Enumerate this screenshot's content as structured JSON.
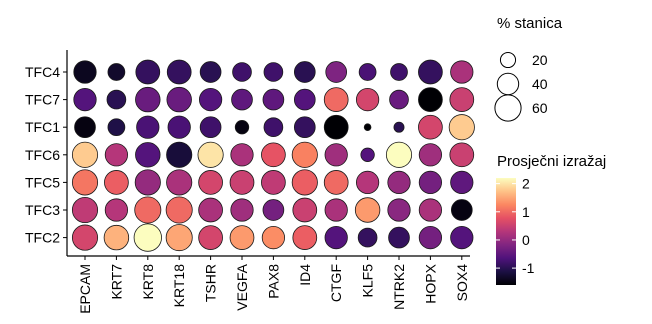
{
  "chart_data": {
    "type": "dot",
    "title": "",
    "xlabel": "",
    "ylabel": "",
    "x_categories": [
      "EPCAM",
      "KRT7",
      "KRT8",
      "KRT18",
      "TSHR",
      "VEGFA",
      "PAX8",
      "ID4",
      "CTGF",
      "KLF5",
      "NTRK2",
      "HOPX",
      "SOX4"
    ],
    "y_categories": [
      "TFC4",
      "TFC7",
      "TFC1",
      "TFC6",
      "TFC5",
      "TFC3",
      "TFC2"
    ],
    "size_legend": {
      "title": "% stanica",
      "values": [
        20,
        40,
        60
      ]
    },
    "color_legend": {
      "title": "Prosječni izražaj",
      "ticks": [
        2,
        1,
        0,
        -1
      ],
      "range": [
        -1.6,
        2.2
      ]
    },
    "cells": {
      "TFC4": {
        "pct": [
          44,
          25,
          50,
          50,
          38,
          31,
          31,
          38,
          38,
          25,
          25,
          50,
          44
        ],
        "expr": [
          -1.4,
          -1.3,
          -0.9,
          -0.9,
          -1.0,
          -0.8,
          -0.8,
          -1.0,
          -0.2,
          -0.7,
          -0.8,
          -0.9,
          0.2
        ]
      },
      "TFC7": {
        "pct": [
          44,
          31,
          53,
          53,
          44,
          38,
          38,
          38,
          50,
          44,
          31,
          50,
          50
        ],
        "expr": [
          -0.6,
          -1.0,
          -0.4,
          -0.4,
          -0.6,
          -0.5,
          -0.5,
          -0.6,
          1.0,
          0.6,
          -0.4,
          -1.6,
          0.5
        ]
      },
      "TFC1": {
        "pct": [
          38,
          25,
          44,
          44,
          38,
          16,
          31,
          38,
          50,
          4,
          9,
          50,
          56
        ],
        "expr": [
          -1.5,
          -1.1,
          -0.7,
          -0.7,
          -0.8,
          -1.5,
          -0.8,
          -0.9,
          -1.6,
          -1.6,
          -1.0,
          0.6,
          1.8
        ]
      },
      "TFC6": {
        "pct": [
          56,
          44,
          53,
          56,
          56,
          44,
          50,
          56,
          44,
          16,
          56,
          44,
          50
        ],
        "expr": [
          1.8,
          0.3,
          -0.6,
          -1.2,
          2.0,
          0.2,
          0.8,
          1.2,
          0.1,
          -0.6,
          2.2,
          0.1,
          0.5
        ]
      },
      "TFC5": {
        "pct": [
          56,
          50,
          56,
          56,
          50,
          50,
          50,
          56,
          50,
          44,
          44,
          44,
          44
        ],
        "expr": [
          1.1,
          0.9,
          0.0,
          0.2,
          0.6,
          0.5,
          0.4,
          0.9,
          1.0,
          0.3,
          0.0,
          -0.3,
          -0.5
        ]
      },
      "TFC3": {
        "pct": [
          56,
          44,
          60,
          60,
          50,
          44,
          38,
          50,
          44,
          53,
          44,
          44,
          38
        ],
        "expr": [
          0.4,
          0.3,
          1.0,
          1.0,
          0.2,
          0.1,
          -0.3,
          0.5,
          0.2,
          1.4,
          -0.1,
          0.2,
          -1.5
        ]
      },
      "TFC2": {
        "pct": [
          56,
          53,
          66,
          60,
          50,
          50,
          44,
          50,
          44,
          31,
          38,
          44,
          44
        ],
        "expr": [
          0.6,
          1.6,
          2.2,
          1.5,
          0.6,
          1.4,
          1.3,
          0.9,
          -0.6,
          -0.9,
          -0.9,
          -0.3,
          -0.6
        ]
      }
    }
  }
}
